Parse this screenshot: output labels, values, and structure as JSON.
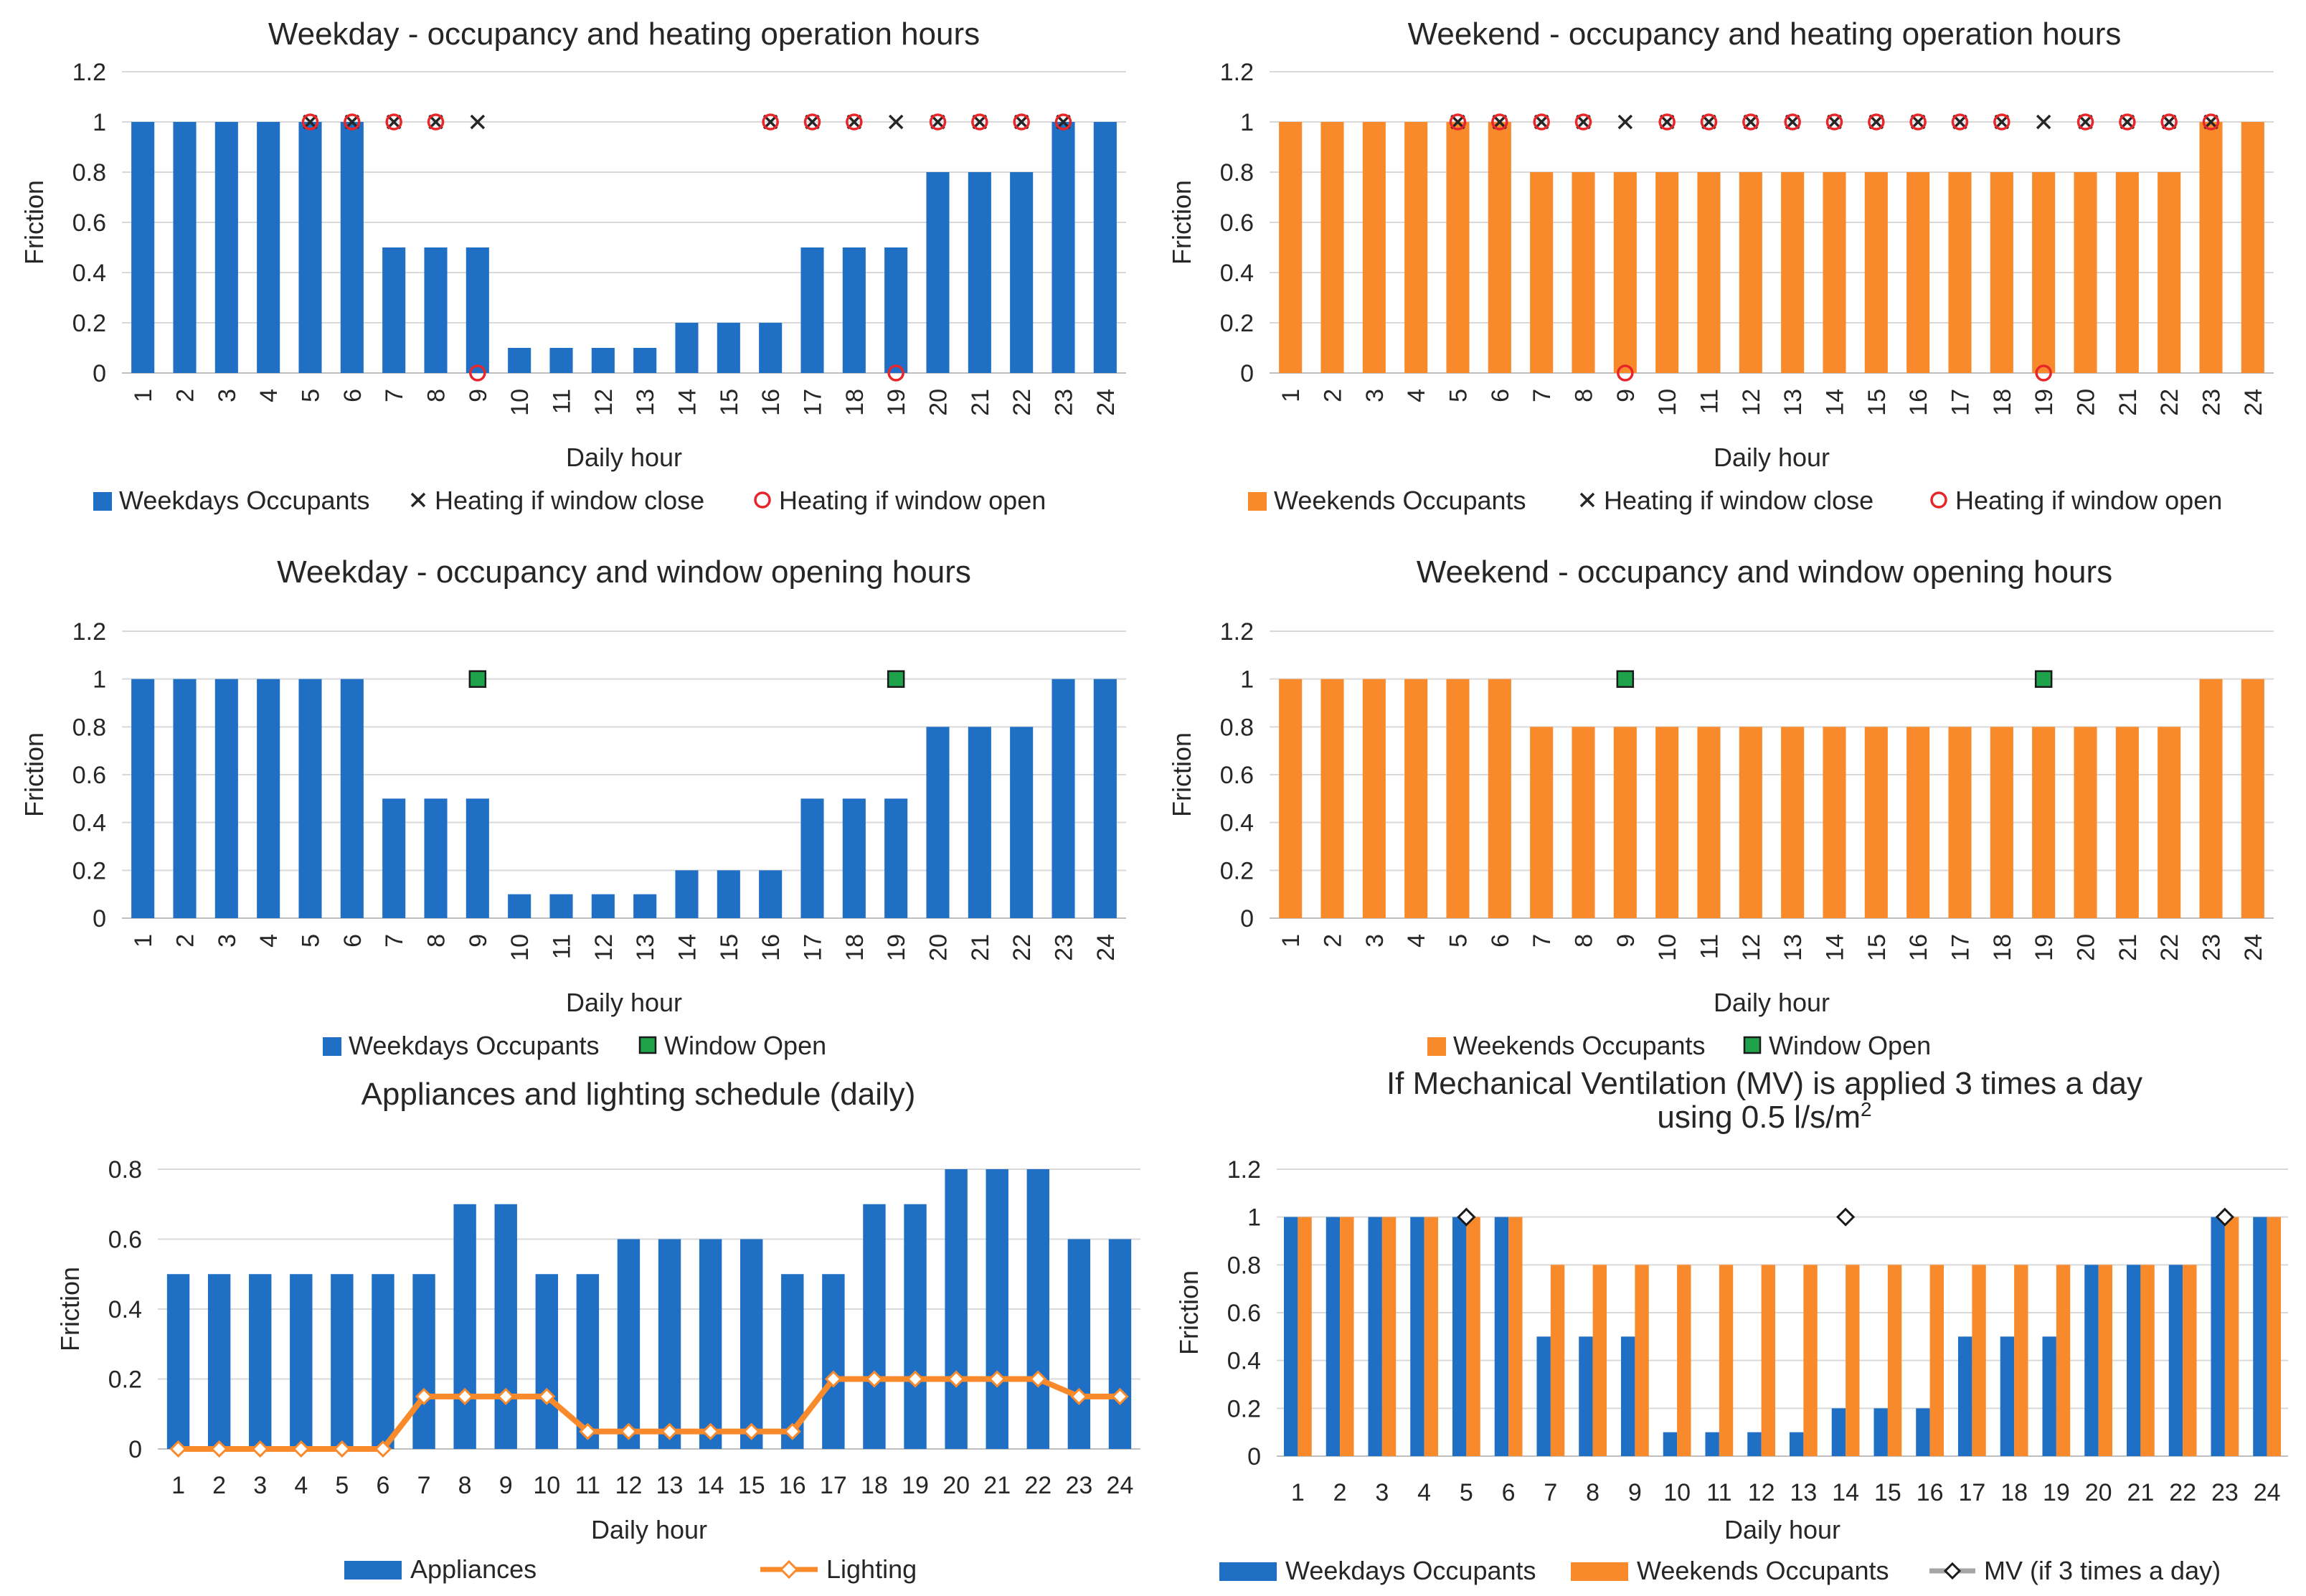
{
  "chart_data": [
    {
      "id": "p1",
      "type": "bar",
      "title": "Weekday - occupancy and heating operation hours",
      "xlabel": "Daily hour",
      "ylabel": "Friction",
      "ylim": [
        0,
        1.2
      ],
      "yticks": [
        "0",
        "0.2",
        "0.4",
        "0.6",
        "0.8",
        "1",
        "1.2"
      ],
      "categories": [
        "1",
        "2",
        "3",
        "4",
        "5",
        "6",
        "7",
        "8",
        "9",
        "10",
        "11",
        "12",
        "13",
        "14",
        "15",
        "16",
        "17",
        "18",
        "19",
        "20",
        "21",
        "22",
        "23",
        "24"
      ],
      "x_rotated": true,
      "series": [
        {
          "name": "Weekdays Occupants",
          "kind": "bar",
          "color": "#1f6fc5",
          "values": [
            1,
            1,
            1,
            1,
            1,
            1,
            0.5,
            0.5,
            0.5,
            0.1,
            0.1,
            0.1,
            0.1,
            0.2,
            0.2,
            0.2,
            0.5,
            0.5,
            0.5,
            0.8,
            0.8,
            0.8,
            1,
            1
          ]
        },
        {
          "name": "Heating if window close",
          "kind": "x-marker",
          "color": "#262626",
          "values": [
            null,
            null,
            null,
            null,
            1,
            1,
            1,
            1,
            1,
            null,
            null,
            null,
            null,
            null,
            null,
            1,
            1,
            1,
            1,
            1,
            1,
            1,
            1,
            null
          ]
        },
        {
          "name": "Heating if window open",
          "kind": "o-marker",
          "color": "#e8262a",
          "values": [
            null,
            null,
            null,
            null,
            1,
            1,
            1,
            1,
            0,
            null,
            null,
            null,
            null,
            null,
            null,
            1,
            1,
            1,
            0,
            1,
            1,
            1,
            1,
            null
          ]
        }
      ]
    },
    {
      "id": "p2",
      "type": "bar",
      "title": "Weekend - occupancy and heating operation hours",
      "xlabel": "Daily hour",
      "ylabel": "Friction",
      "ylim": [
        0,
        1.2
      ],
      "yticks": [
        "0",
        "0.2",
        "0.4",
        "0.6",
        "0.8",
        "1",
        "1.2"
      ],
      "categories": [
        "1",
        "2",
        "3",
        "4",
        "5",
        "6",
        "7",
        "8",
        "9",
        "10",
        "11",
        "12",
        "13",
        "14",
        "15",
        "16",
        "17",
        "18",
        "19",
        "20",
        "21",
        "22",
        "23",
        "24"
      ],
      "x_rotated": true,
      "series": [
        {
          "name": "Weekends Occupants",
          "kind": "bar",
          "color": "#f98a2b",
          "values": [
            1,
            1,
            1,
            1,
            1,
            1,
            0.8,
            0.8,
            0.8,
            0.8,
            0.8,
            0.8,
            0.8,
            0.8,
            0.8,
            0.8,
            0.8,
            0.8,
            0.8,
            0.8,
            0.8,
            0.8,
            1,
            1
          ]
        },
        {
          "name": "Heating if window close",
          "kind": "x-marker",
          "color": "#262626",
          "values": [
            null,
            null,
            null,
            null,
            1,
            1,
            1,
            1,
            1,
            1,
            1,
            1,
            1,
            1,
            1,
            1,
            1,
            1,
            1,
            1,
            1,
            1,
            1,
            null
          ]
        },
        {
          "name": "Heating if window open",
          "kind": "o-marker",
          "color": "#e8262a",
          "values": [
            null,
            null,
            null,
            null,
            1,
            1,
            1,
            1,
            0,
            1,
            1,
            1,
            1,
            1,
            1,
            1,
            1,
            1,
            0,
            1,
            1,
            1,
            1,
            null
          ]
        }
      ]
    },
    {
      "id": "p3",
      "type": "bar",
      "title": "Weekday - occupancy and window opening hours",
      "xlabel": "Daily hour",
      "ylabel": "Friction",
      "ylim": [
        0,
        1.2
      ],
      "yticks": [
        "0",
        "0.2",
        "0.4",
        "0.6",
        "0.8",
        "1",
        "1.2"
      ],
      "categories": [
        "1",
        "2",
        "3",
        "4",
        "5",
        "6",
        "7",
        "8",
        "9",
        "10",
        "11",
        "12",
        "13",
        "14",
        "15",
        "16",
        "17",
        "18",
        "19",
        "20",
        "21",
        "22",
        "23",
        "24"
      ],
      "x_rotated": true,
      "series": [
        {
          "name": "Weekdays Occupants",
          "kind": "bar",
          "color": "#1f6fc5",
          "values": [
            1,
            1,
            1,
            1,
            1,
            1,
            0.5,
            0.5,
            0.5,
            0.1,
            0.1,
            0.1,
            0.1,
            0.2,
            0.2,
            0.2,
            0.5,
            0.5,
            0.5,
            0.8,
            0.8,
            0.8,
            1,
            1
          ]
        },
        {
          "name": "Window Open",
          "kind": "square-marker",
          "color": "#1fa34a",
          "values": [
            null,
            null,
            null,
            null,
            null,
            null,
            null,
            null,
            1,
            null,
            null,
            null,
            null,
            null,
            null,
            null,
            null,
            null,
            1,
            null,
            null,
            null,
            null,
            null
          ]
        }
      ]
    },
    {
      "id": "p4",
      "type": "bar",
      "title": "Weekend  - occupancy and window opening hours",
      "xlabel": "Daily hour",
      "ylabel": "Friction",
      "ylim": [
        0,
        1.2
      ],
      "yticks": [
        "0",
        "0.2",
        "0.4",
        "0.6",
        "0.8",
        "1",
        "1.2"
      ],
      "categories": [
        "1",
        "2",
        "3",
        "4",
        "5",
        "6",
        "7",
        "8",
        "9",
        "10",
        "11",
        "12",
        "13",
        "14",
        "15",
        "16",
        "17",
        "18",
        "19",
        "20",
        "21",
        "22",
        "23",
        "24"
      ],
      "x_rotated": true,
      "series": [
        {
          "name": "Weekends Occupants",
          "kind": "bar",
          "color": "#f98a2b",
          "values": [
            1,
            1,
            1,
            1,
            1,
            1,
            0.8,
            0.8,
            0.8,
            0.8,
            0.8,
            0.8,
            0.8,
            0.8,
            0.8,
            0.8,
            0.8,
            0.8,
            0.8,
            0.8,
            0.8,
            0.8,
            1,
            1
          ]
        },
        {
          "name": "Window Open",
          "kind": "square-marker",
          "color": "#1fa34a",
          "values": [
            null,
            null,
            null,
            null,
            null,
            null,
            null,
            null,
            1,
            null,
            null,
            null,
            null,
            null,
            null,
            null,
            null,
            null,
            1,
            null,
            null,
            null,
            null,
            null
          ]
        }
      ]
    },
    {
      "id": "p5",
      "type": "bar",
      "title": "Appliances and lighting schedule (daily)",
      "xlabel": "Daily hour",
      "ylabel": "Friction",
      "ylim": [
        0,
        0.8
      ],
      "yticks": [
        "0",
        "0.2",
        "0.4",
        "0.6",
        "0.8"
      ],
      "categories": [
        "1",
        "2",
        "3",
        "4",
        "5",
        "6",
        "7",
        "8",
        "9",
        "10",
        "11",
        "12",
        "13",
        "14",
        "15",
        "16",
        "17",
        "18",
        "19",
        "20",
        "21",
        "22",
        "23",
        "24"
      ],
      "x_rotated": false,
      "series": [
        {
          "name": "Appliances",
          "kind": "bar",
          "color": "#1f6fc5",
          "values": [
            0.5,
            0.5,
            0.5,
            0.5,
            0.5,
            0.5,
            0.5,
            0.7,
            0.7,
            0.5,
            0.5,
            0.6,
            0.6,
            0.6,
            0.6,
            0.5,
            0.5,
            0.7,
            0.7,
            0.8,
            0.8,
            0.8,
            0.6,
            0.6
          ]
        },
        {
          "name": "Lighting",
          "kind": "line",
          "color": "#f98a2b",
          "values": [
            0,
            0,
            0,
            0,
            0,
            0,
            0.15,
            0.15,
            0.15,
            0.15,
            0.05,
            0.05,
            0.05,
            0.05,
            0.05,
            0.05,
            0.2,
            0.2,
            0.2,
            0.2,
            0.2,
            0.2,
            0.15,
            0.15
          ]
        }
      ]
    },
    {
      "id": "p6",
      "type": "bar",
      "title": "If Mechanical Ventilation (MV) is applied 3 times a day",
      "title_line2_text": "using 0.5 l/s/m",
      "title_line2_sup": "2",
      "xlabel": "Daily hour",
      "ylabel": "Friction",
      "ylim": [
        0,
        1.2
      ],
      "yticks": [
        "0",
        "0.2",
        "0.4",
        "0.6",
        "0.8",
        "1",
        "1.2"
      ],
      "categories": [
        "1",
        "2",
        "3",
        "4",
        "5",
        "6",
        "7",
        "8",
        "9",
        "10",
        "11",
        "12",
        "13",
        "14",
        "15",
        "16",
        "17",
        "18",
        "19",
        "20",
        "21",
        "22",
        "23",
        "24"
      ],
      "x_rotated": false,
      "series": [
        {
          "name": "Weekdays Occupants",
          "kind": "bar",
          "color": "#1f6fc5",
          "values": [
            1,
            1,
            1,
            1,
            1,
            1,
            0.5,
            0.5,
            0.5,
            0.1,
            0.1,
            0.1,
            0.1,
            0.2,
            0.2,
            0.2,
            0.5,
            0.5,
            0.5,
            0.8,
            0.8,
            0.8,
            1,
            1
          ]
        },
        {
          "name": "Weekends Occupants",
          "kind": "bar",
          "color": "#f98a2b",
          "values": [
            1,
            1,
            1,
            1,
            1,
            1,
            0.8,
            0.8,
            0.8,
            0.8,
            0.8,
            0.8,
            0.8,
            0.8,
            0.8,
            0.8,
            0.8,
            0.8,
            0.8,
            0.8,
            0.8,
            0.8,
            1,
            1
          ]
        },
        {
          "name": "MV (if 3 times a day)",
          "kind": "diamond-marker",
          "color": "#404040",
          "values": [
            null,
            null,
            null,
            null,
            1,
            null,
            null,
            null,
            null,
            null,
            null,
            null,
            null,
            1,
            null,
            null,
            null,
            null,
            null,
            null,
            null,
            null,
            1,
            null
          ]
        }
      ]
    }
  ]
}
